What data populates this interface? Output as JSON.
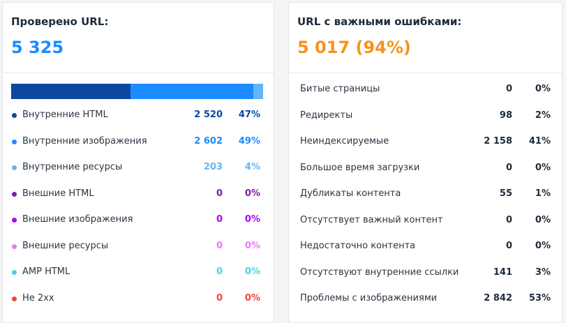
{
  "left": {
    "title": "Проверено URL:",
    "total": "5 325",
    "items": [
      {
        "name": "Внутренние HTML",
        "color": "#0d47a1",
        "value": 2520,
        "value_label": "2 520",
        "percent": "47%"
      },
      {
        "name": "Внутренние изображения",
        "color": "#1a8cff",
        "value": 2602,
        "value_label": "2 602",
        "percent": "49%"
      },
      {
        "name": "Внутренние ресурсы",
        "color": "#64b5f6",
        "value": 203,
        "value_label": "203",
        "percent": "4%"
      },
      {
        "name": "Внешние HTML",
        "color": "#7b1fa2",
        "value": 0,
        "value_label": "0",
        "percent": "0%"
      },
      {
        "name": "Внешние изображения",
        "color": "#aa00ff",
        "value": 0,
        "value_label": "0",
        "percent": "0%"
      },
      {
        "name": "Внешние ресурсы",
        "color": "#e879f9",
        "value": 0,
        "value_label": "0",
        "percent": "0%"
      },
      {
        "name": "AMP HTML",
        "color": "#4dd0e1",
        "value": 0,
        "value_label": "0",
        "percent": "0%"
      },
      {
        "name": "Не 2xx",
        "color": "#f44336",
        "value": 0,
        "value_label": "0",
        "percent": "0%"
      }
    ]
  },
  "right": {
    "title": "URL с важными ошибками:",
    "total": "5 017 (94%)",
    "items": [
      {
        "name": "Битые страницы",
        "count": "0",
        "percent": "0%"
      },
      {
        "name": "Редиректы",
        "count": "98",
        "percent": "2%"
      },
      {
        "name": "Неиндексируемые",
        "count": "2 158",
        "percent": "41%"
      },
      {
        "name": "Большое время загрузки",
        "count": "0",
        "percent": "0%"
      },
      {
        "name": "Дубликаты контента",
        "count": "55",
        "percent": "1%"
      },
      {
        "name": "Отсутствует важный контент",
        "count": "0",
        "percent": "0%"
      },
      {
        "name": "Недостаточно контента",
        "count": "0",
        "percent": "0%"
      },
      {
        "name": "Отсутствуют внутренние ссылки",
        "count": "141",
        "percent": "3%"
      },
      {
        "name": "Проблемы с изображениями",
        "count": "2 842",
        "percent": "53%"
      }
    ]
  }
}
